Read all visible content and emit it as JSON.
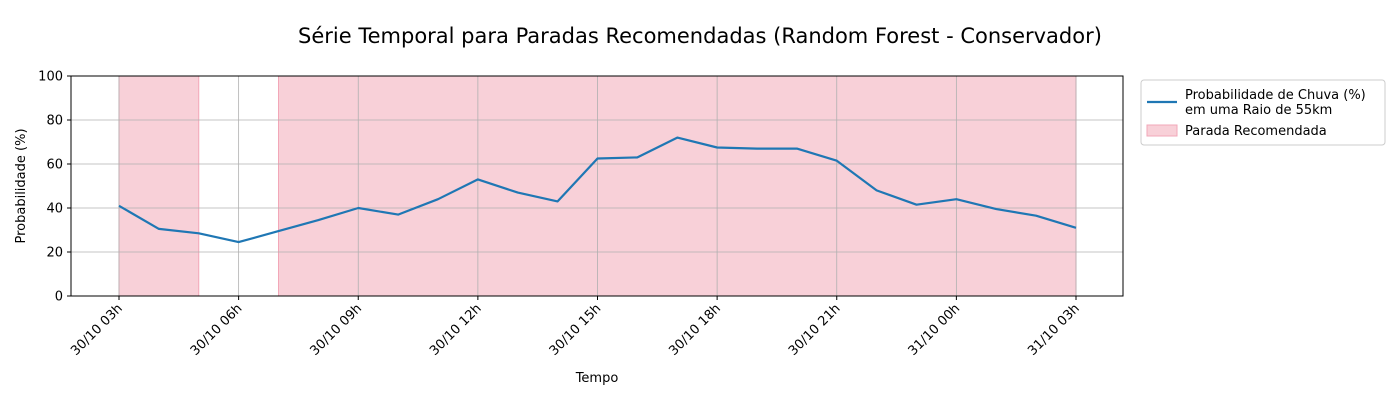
{
  "chart_data": {
    "type": "line",
    "title": "Série Temporal para Paradas Recomendadas (Random Forest - Conservador)",
    "xlabel": "Tempo",
    "ylabel": "Probabilidade (%)",
    "ylim": [
      0,
      100
    ],
    "yticks": [
      "0",
      "20",
      "40",
      "60",
      "80",
      "100"
    ],
    "xtick_labels": [
      "30/10 03h",
      "30/10 06h",
      "30/10 09h",
      "30/10 12h",
      "30/10 15h",
      "30/10 18h",
      "30/10 21h",
      "31/10 00h",
      "31/10 03h"
    ],
    "x": [
      "30/10 03h",
      "30/10 04h",
      "30/10 05h",
      "30/10 06h",
      "30/10 07h",
      "30/10 08h",
      "30/10 09h",
      "30/10 10h",
      "30/10 11h",
      "30/10 12h",
      "30/10 13h",
      "30/10 14h",
      "30/10 15h",
      "30/10 16h",
      "30/10 17h",
      "30/10 18h",
      "30/10 19h",
      "30/10 20h",
      "30/10 21h",
      "30/10 22h",
      "30/10 23h",
      "31/10 00h",
      "31/10 01h",
      "31/10 02h",
      "31/10 03h"
    ],
    "series": [
      {
        "name": "Probabilidade de Chuva (%)\n em uma Raio de 55km",
        "color": "#1f77b4",
        "values": [
          41,
          30.5,
          28.5,
          24.5,
          29.5,
          34.5,
          40,
          37,
          44,
          53,
          47,
          43,
          62.5,
          63,
          72,
          67.5,
          67,
          67,
          61.5,
          48,
          41.5,
          44,
          39.5,
          36.5,
          31
        ]
      }
    ],
    "spans": {
      "name": "Parada Recomendada",
      "color": "#f8d0d8",
      "edge_color": "#f2a7b8",
      "ranges": [
        [
          "30/10 03h",
          "30/10 05h"
        ],
        [
          "30/10 07h",
          "31/10 03h"
        ]
      ]
    },
    "grid": true,
    "legend_position": "outside-right-top"
  }
}
